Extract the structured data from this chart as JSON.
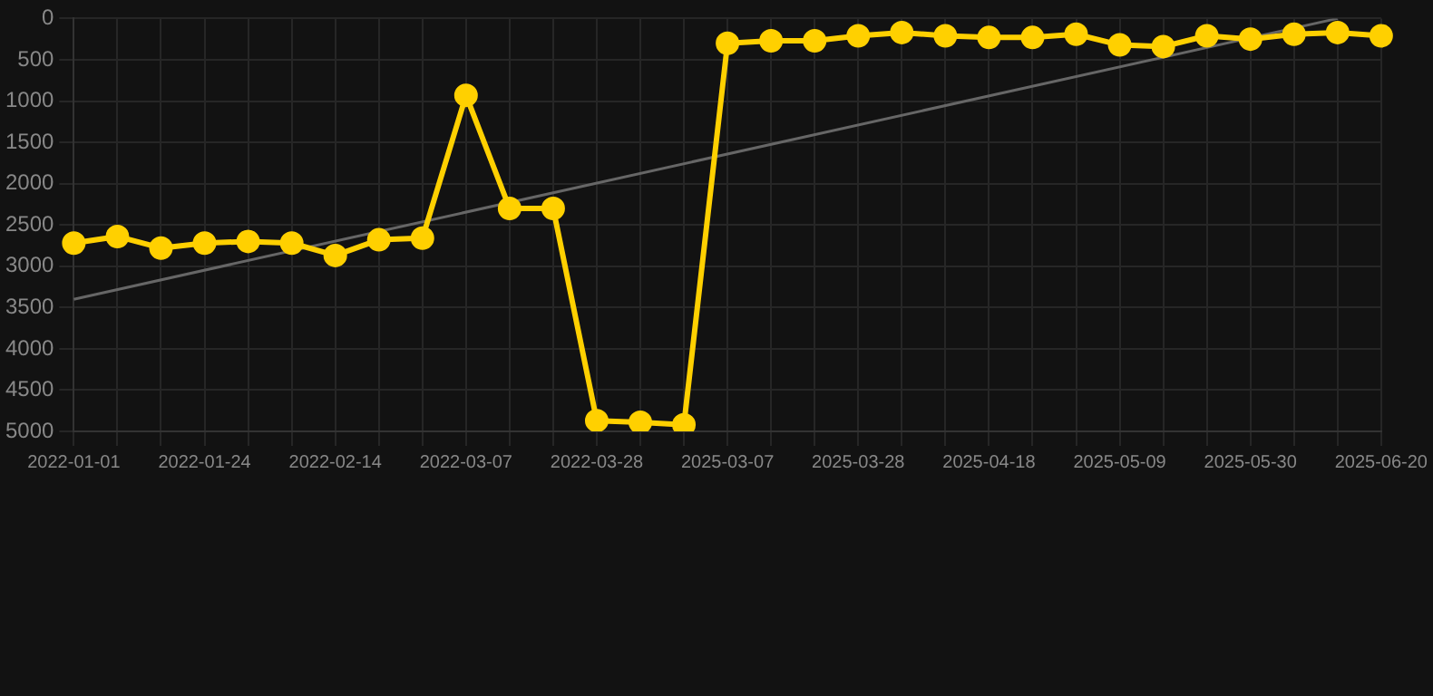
{
  "chart_data": {
    "type": "line",
    "categories": [
      "2022-01-01",
      null,
      null,
      "2022-01-24",
      null,
      null,
      "2022-02-14",
      null,
      null,
      "2022-03-07",
      null,
      null,
      "2022-03-28",
      null,
      null,
      "2025-03-07",
      null,
      null,
      "2025-03-28",
      null,
      null,
      "2025-04-18",
      null,
      null,
      "2025-05-09",
      null,
      null,
      "2025-05-30",
      null,
      null,
      "2025-06-20"
    ],
    "series": [
      {
        "color": "#ffd000",
        "values": [
          2720,
          2640,
          2780,
          2720,
          2700,
          2720,
          2870,
          2680,
          2660,
          930,
          2300,
          2300,
          4870,
          4890,
          4920,
          300,
          270,
          270,
          210,
          170,
          210,
          230,
          230,
          190,
          320,
          340,
          210,
          250,
          190,
          170,
          210
        ]
      },
      {
        "type": "line",
        "color": "#666666",
        "marker": "none",
        "values": [
          3400,
          null,
          null,
          null,
          null,
          null,
          null,
          null,
          null,
          null,
          null,
          null,
          null,
          null,
          null,
          null,
          null,
          null,
          null,
          null,
          null,
          null,
          null,
          null,
          null,
          null,
          null,
          null,
          null,
          0,
          null
        ]
      }
    ],
    "ylim": [
      5000,
      0
    ],
    "yticks": [
      0,
      500,
      1000,
      1500,
      2000,
      2500,
      3000,
      3500,
      4000,
      4500,
      5000
    ],
    "grid": true,
    "legend": false,
    "marker": "circle"
  }
}
